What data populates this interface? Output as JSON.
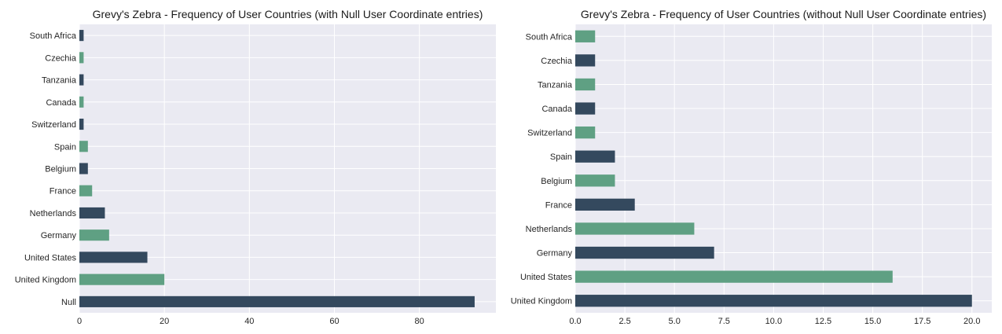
{
  "chart_data": [
    {
      "type": "bar",
      "orientation": "horizontal",
      "title": "Grevy's Zebra - Frequency of User Countries (with Null User Coordinate entries)",
      "xlabel": "",
      "ylabel": "",
      "categories": [
        "South Africa",
        "Czechia",
        "Tanzania",
        "Canada",
        "Switzerland",
        "Spain",
        "Belgium",
        "France",
        "Netherlands",
        "Germany",
        "United States",
        "United Kingdom",
        "Null"
      ],
      "values": [
        1,
        1,
        1,
        1,
        1,
        2,
        2,
        3,
        6,
        7,
        16,
        20,
        93
      ],
      "xlim": [
        0,
        98
      ],
      "xticks": [
        0,
        20,
        40,
        60,
        80
      ],
      "xtick_labels": [
        "0",
        "20",
        "40",
        "60",
        "80"
      ],
      "grid": true,
      "colors": [
        "#34495e",
        "#5fa083"
      ]
    },
    {
      "type": "bar",
      "orientation": "horizontal",
      "title": "Grevy's Zebra - Frequency of User Countries (without Null User Coordinate entries)",
      "xlabel": "",
      "ylabel": "",
      "categories": [
        "South Africa",
        "Czechia",
        "Tanzania",
        "Canada",
        "Switzerland",
        "Spain",
        "Belgium",
        "France",
        "Netherlands",
        "Germany",
        "United States",
        "United Kingdom"
      ],
      "values": [
        1,
        1,
        1,
        1,
        1,
        2,
        2,
        3,
        6,
        7,
        16,
        20
      ],
      "xlim": [
        0,
        21
      ],
      "xticks": [
        0,
        2.5,
        5,
        7.5,
        10,
        12.5,
        15,
        17.5,
        20
      ],
      "xtick_labels": [
        "0.0",
        "2.5",
        "5.0",
        "7.5",
        "10.0",
        "12.5",
        "15.0",
        "17.5",
        "20.0"
      ],
      "grid": true,
      "colors": [
        "#5fa083",
        "#34495e"
      ]
    }
  ]
}
